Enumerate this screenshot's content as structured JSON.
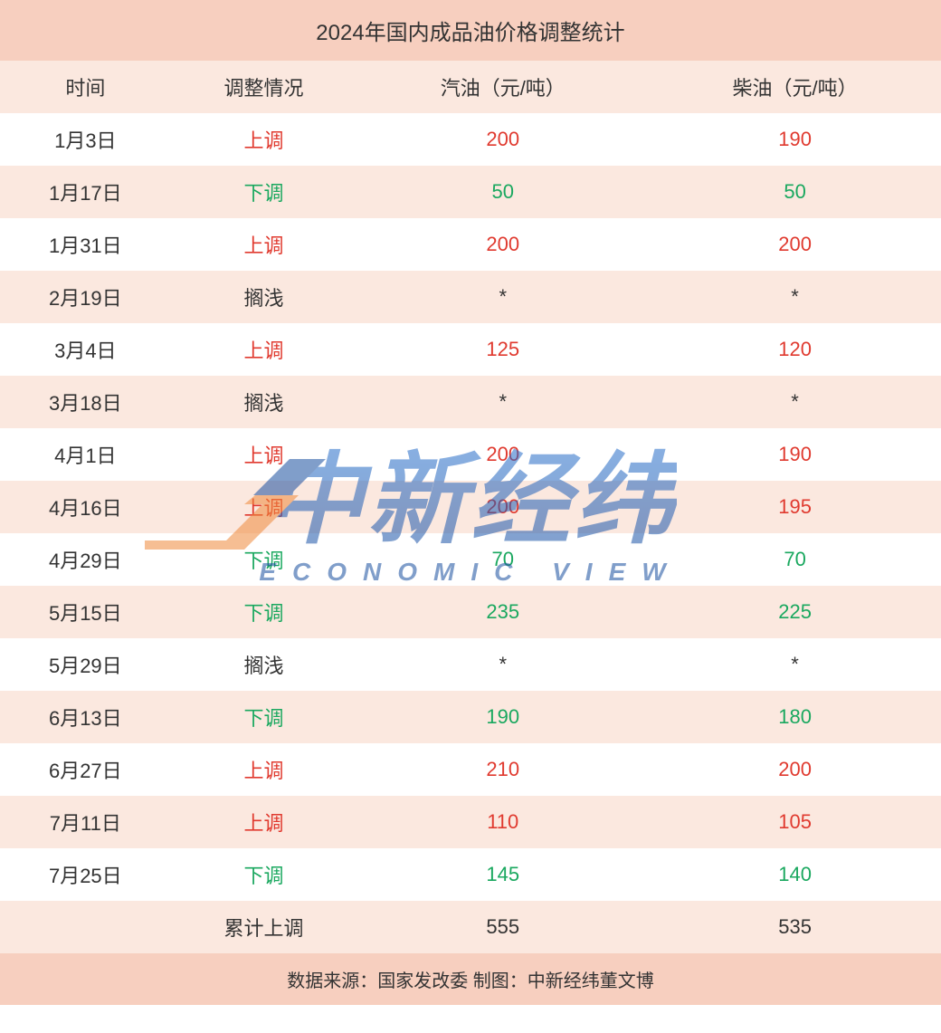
{
  "title": "2024年国内成品油价格调整统计",
  "columns": [
    "时间",
    "调整情况",
    "汽油（元/吨）",
    "柴油（元/吨）"
  ],
  "colors": {
    "title_bg": "#f7cfbf",
    "header_bg": "#fbe8df",
    "row_odd_bg": "#ffffff",
    "row_even_bg": "#fbe8df",
    "footer_bg": "#f7cfbf",
    "text": "#333333",
    "up": "#e03a2f",
    "down": "#1aa85f",
    "neutral": "#333333",
    "watermark_blue_top": "#2b77d6",
    "watermark_blue_bottom": "#1a4fa0",
    "watermark_orange": "#f08a3c"
  },
  "typography": {
    "title_fontsize": 24,
    "header_fontsize": 22,
    "cell_fontsize": 22,
    "footer_fontsize": 20
  },
  "rows": [
    {
      "date": "1月3日",
      "dir": "上调",
      "dir_type": "up",
      "gas": "200",
      "diesel": "190"
    },
    {
      "date": "1月17日",
      "dir": "下调",
      "dir_type": "down",
      "gas": "50",
      "diesel": "50"
    },
    {
      "date": "1月31日",
      "dir": "上调",
      "dir_type": "up",
      "gas": "200",
      "diesel": "200"
    },
    {
      "date": "2月19日",
      "dir": "搁浅",
      "dir_type": "neutral",
      "gas": "*",
      "diesel": "*"
    },
    {
      "date": "3月4日",
      "dir": "上调",
      "dir_type": "up",
      "gas": "125",
      "diesel": "120"
    },
    {
      "date": "3月18日",
      "dir": "搁浅",
      "dir_type": "neutral",
      "gas": "*",
      "diesel": "*"
    },
    {
      "date": "4月1日",
      "dir": "上调",
      "dir_type": "up",
      "gas": "200",
      "diesel": "190"
    },
    {
      "date": "4月16日",
      "dir": "上调",
      "dir_type": "up",
      "gas": "200",
      "diesel": "195"
    },
    {
      "date": "4月29日",
      "dir": "下调",
      "dir_type": "down",
      "gas": "70",
      "diesel": "70"
    },
    {
      "date": "5月15日",
      "dir": "下调",
      "dir_type": "down",
      "gas": "235",
      "diesel": "225"
    },
    {
      "date": "5月29日",
      "dir": "搁浅",
      "dir_type": "neutral",
      "gas": "*",
      "diesel": "*"
    },
    {
      "date": "6月13日",
      "dir": "下调",
      "dir_type": "down",
      "gas": "190",
      "diesel": "180"
    },
    {
      "date": "6月27日",
      "dir": "上调",
      "dir_type": "up",
      "gas": "210",
      "diesel": "200"
    },
    {
      "date": "7月11日",
      "dir": "上调",
      "dir_type": "up",
      "gas": "110",
      "diesel": "105"
    },
    {
      "date": "7月25日",
      "dir": "下调",
      "dir_type": "down",
      "gas": "145",
      "diesel": "140"
    }
  ],
  "summary": {
    "label": "累计上调",
    "gas": "555",
    "diesel": "535"
  },
  "footer": "数据来源：国家发改委  制图：中新经纬董文博",
  "watermark": {
    "main": "中新经纬",
    "sub": "ECONOMIC VIEW"
  }
}
